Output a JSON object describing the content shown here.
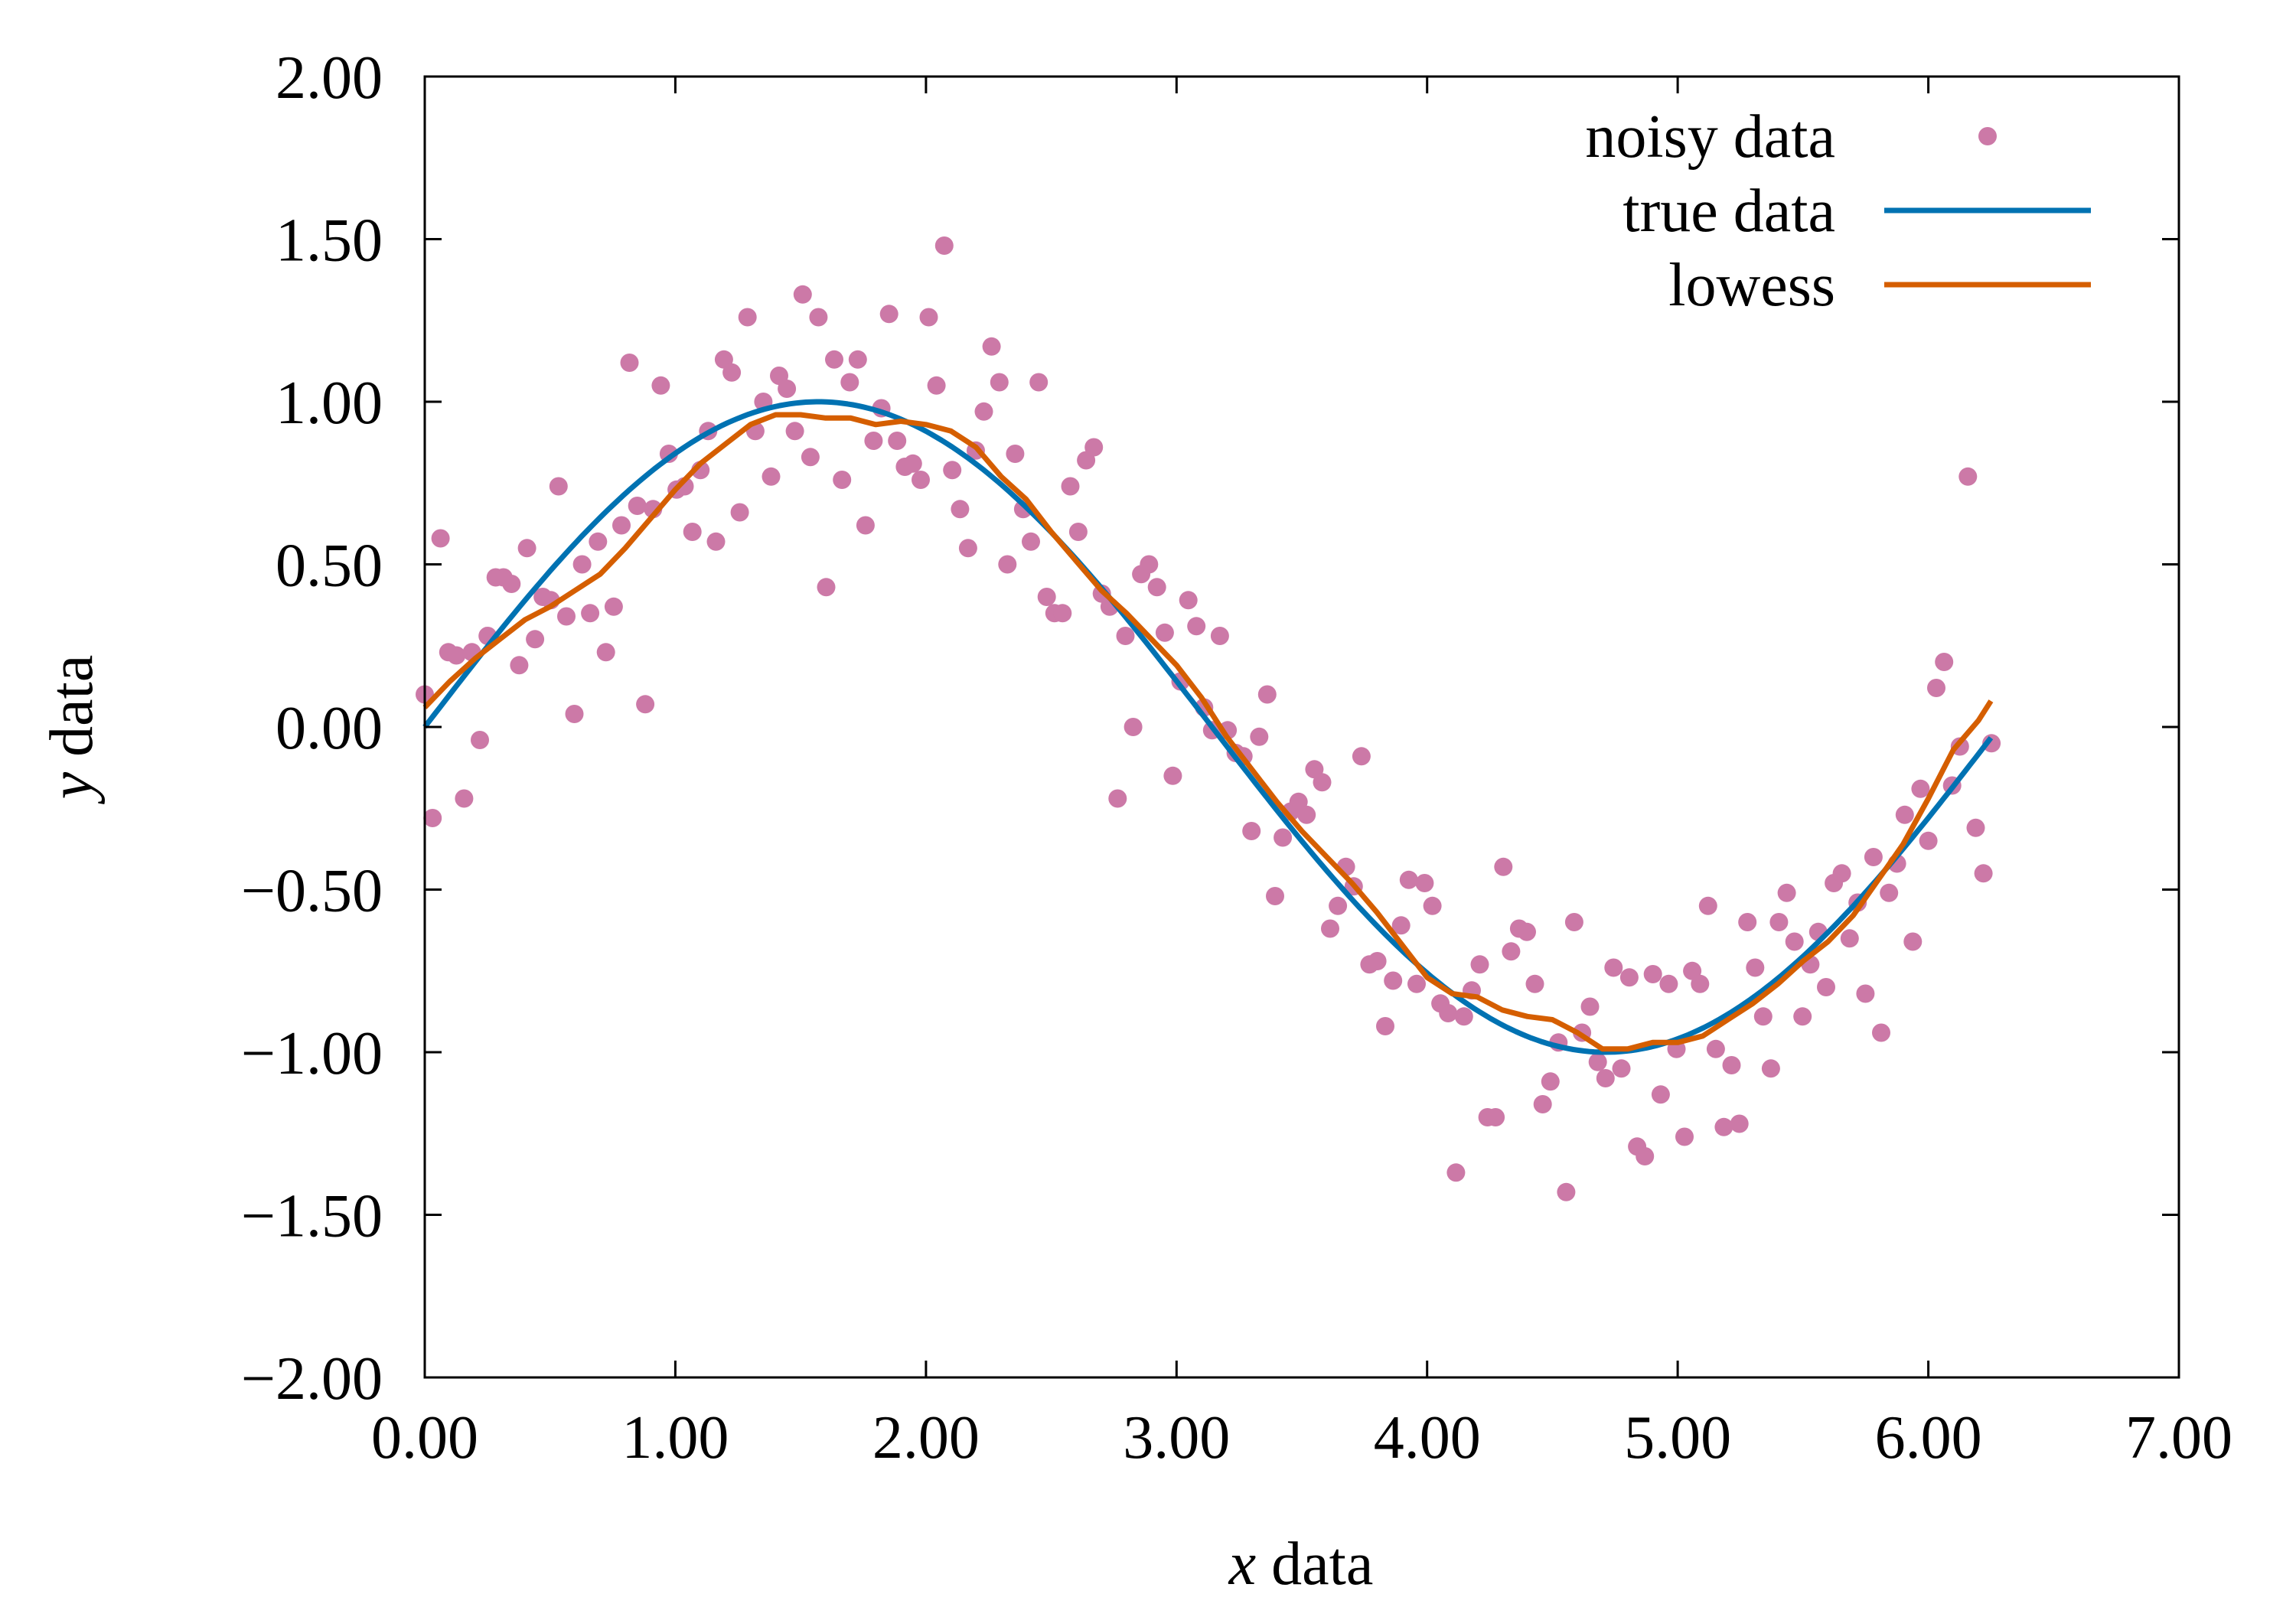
{
  "chart_data": {
    "type": "scatter",
    "xlabel_var": "x",
    "xlabel_rest": " data",
    "ylabel_var": "y",
    "ylabel_rest": " data",
    "xlim": [
      0,
      7
    ],
    "ylim": [
      -2,
      2
    ],
    "xticks": [
      0,
      1,
      2,
      3,
      4,
      5,
      6,
      7
    ],
    "xtick_labels": [
      "0.00",
      "1.00",
      "2.00",
      "3.00",
      "4.00",
      "5.00",
      "6.00",
      "7.00"
    ],
    "yticks": [
      -2,
      -1.5,
      -1,
      -0.5,
      0,
      0.5,
      1,
      1.5,
      2
    ],
    "ytick_labels": [
      "−2.00",
      "−1.50",
      "−1.00",
      "−0.50",
      "0.00",
      "0.50",
      "1.00",
      "1.50",
      "2.00"
    ],
    "grid": false,
    "legend_position": "top-right",
    "series": [
      {
        "name": "noisy data",
        "kind": "scatter",
        "color": "#cc79a7",
        "points": [
          [
            0.0,
            0.1
          ],
          [
            0.031,
            -0.28
          ],
          [
            0.063,
            0.58
          ],
          [
            0.094,
            0.23
          ],
          [
            0.126,
            0.22
          ],
          [
            0.157,
            -0.22
          ],
          [
            0.188,
            0.23
          ],
          [
            0.22,
            -0.04
          ],
          [
            0.251,
            0.28
          ],
          [
            0.283,
            0.46
          ],
          [
            0.314,
            0.46
          ],
          [
            0.346,
            0.44
          ],
          [
            0.377,
            0.19
          ],
          [
            0.408,
            0.55
          ],
          [
            0.44,
            0.27
          ],
          [
            0.471,
            0.4
          ],
          [
            0.503,
            0.39
          ],
          [
            0.534,
            0.74
          ],
          [
            0.565,
            0.34
          ],
          [
            0.597,
            0.04
          ],
          [
            0.628,
            0.5
          ],
          [
            0.66,
            0.35
          ],
          [
            0.691,
            0.57
          ],
          [
            0.723,
            0.23
          ],
          [
            0.754,
            0.37
          ],
          [
            0.785,
            0.62
          ],
          [
            0.817,
            1.12
          ],
          [
            0.848,
            0.68
          ],
          [
            0.88,
            0.07
          ],
          [
            0.911,
            0.67
          ],
          [
            0.942,
            1.05
          ],
          [
            0.974,
            0.84
          ],
          [
            1.005,
            0.73
          ],
          [
            1.037,
            0.74
          ],
          [
            1.068,
            0.6
          ],
          [
            1.1,
            0.79
          ],
          [
            1.131,
            0.91
          ],
          [
            1.162,
            0.57
          ],
          [
            1.194,
            1.13
          ],
          [
            1.225,
            1.09
          ],
          [
            1.257,
            0.66
          ],
          [
            1.288,
            1.26
          ],
          [
            1.319,
            0.91
          ],
          [
            1.351,
            1.0
          ],
          [
            1.382,
            0.77
          ],
          [
            1.414,
            1.08
          ],
          [
            1.445,
            1.04
          ],
          [
            1.477,
            0.91
          ],
          [
            1.508,
            1.33
          ],
          [
            1.539,
            0.83
          ],
          [
            1.571,
            1.26
          ],
          [
            1.602,
            0.43
          ],
          [
            1.634,
            1.13
          ],
          [
            1.665,
            0.76
          ],
          [
            1.696,
            1.06
          ],
          [
            1.728,
            1.13
          ],
          [
            1.759,
            0.62
          ],
          [
            1.791,
            0.88
          ],
          [
            1.822,
            0.98
          ],
          [
            1.853,
            1.27
          ],
          [
            1.885,
            0.88
          ],
          [
            1.916,
            0.8
          ],
          [
            1.948,
            0.81
          ],
          [
            1.979,
            0.76
          ],
          [
            2.011,
            1.26
          ],
          [
            2.042,
            1.05
          ],
          [
            2.073,
            1.48
          ],
          [
            2.105,
            0.79
          ],
          [
            2.136,
            0.67
          ],
          [
            2.168,
            0.55
          ],
          [
            2.199,
            0.85
          ],
          [
            2.231,
            0.97
          ],
          [
            2.262,
            1.17
          ],
          [
            2.293,
            1.06
          ],
          [
            2.325,
            0.5
          ],
          [
            2.356,
            0.84
          ],
          [
            2.388,
            0.67
          ],
          [
            2.419,
            0.57
          ],
          [
            2.45,
            1.06
          ],
          [
            2.482,
            0.4
          ],
          [
            2.513,
            0.35
          ],
          [
            2.545,
            0.35
          ],
          [
            2.576,
            0.74
          ],
          [
            2.608,
            0.6
          ],
          [
            2.639,
            0.82
          ],
          [
            2.67,
            0.86
          ],
          [
            2.702,
            0.41
          ],
          [
            2.733,
            0.37
          ],
          [
            2.765,
            -0.22
          ],
          [
            2.796,
            0.28
          ],
          [
            2.827,
            0.0
          ],
          [
            2.859,
            0.47
          ],
          [
            2.89,
            0.5
          ],
          [
            2.922,
            0.43
          ],
          [
            2.953,
            0.29
          ],
          [
            2.985,
            -0.15
          ],
          [
            3.016,
            0.14
          ],
          [
            3.047,
            0.39
          ],
          [
            3.079,
            0.31
          ],
          [
            3.11,
            0.06
          ],
          [
            3.142,
            -0.01
          ],
          [
            3.173,
            0.28
          ],
          [
            3.204,
            -0.01
          ],
          [
            3.236,
            -0.08
          ],
          [
            3.267,
            -0.09
          ],
          [
            3.299,
            -0.32
          ],
          [
            3.33,
            -0.03
          ],
          [
            3.362,
            0.1
          ],
          [
            3.393,
            -0.52
          ],
          [
            3.424,
            -0.34
          ],
          [
            3.456,
            -0.26
          ],
          [
            3.487,
            -0.23
          ],
          [
            3.519,
            -0.27
          ],
          [
            3.55,
            -0.13
          ],
          [
            3.581,
            -0.17
          ],
          [
            3.613,
            -0.62
          ],
          [
            3.644,
            -0.55
          ],
          [
            3.676,
            -0.43
          ],
          [
            3.707,
            -0.49
          ],
          [
            3.738,
            -0.09
          ],
          [
            3.77,
            -0.73
          ],
          [
            3.801,
            -0.72
          ],
          [
            3.833,
            -0.92
          ],
          [
            3.864,
            -0.78
          ],
          [
            3.896,
            -0.61
          ],
          [
            3.927,
            -0.47
          ],
          [
            3.958,
            -0.79
          ],
          [
            3.99,
            -0.48
          ],
          [
            4.021,
            -0.55
          ],
          [
            4.053,
            -0.85
          ],
          [
            4.084,
            -0.88
          ],
          [
            4.115,
            -1.37
          ],
          [
            4.147,
            -0.89
          ],
          [
            4.178,
            -0.81
          ],
          [
            4.21,
            -0.73
          ],
          [
            4.241,
            -1.2
          ],
          [
            4.273,
            -1.2
          ],
          [
            4.304,
            -0.43
          ],
          [
            4.335,
            -0.69
          ],
          [
            4.367,
            -0.62
          ],
          [
            4.398,
            -0.63
          ],
          [
            4.43,
            -0.79
          ],
          [
            4.461,
            -1.16
          ],
          [
            4.492,
            -1.09
          ],
          [
            4.524,
            -0.97
          ],
          [
            4.555,
            -1.43
          ],
          [
            4.587,
            -0.6
          ],
          [
            4.618,
            -0.94
          ],
          [
            4.65,
            -0.86
          ],
          [
            4.681,
            -1.03
          ],
          [
            4.712,
            -1.08
          ],
          [
            4.744,
            -0.74
          ],
          [
            4.775,
            -1.05
          ],
          [
            4.807,
            -0.77
          ],
          [
            4.838,
            -1.29
          ],
          [
            4.869,
            -1.32
          ],
          [
            4.901,
            -0.76
          ],
          [
            4.932,
            -1.13
          ],
          [
            4.964,
            -0.79
          ],
          [
            4.995,
            -0.99
          ],
          [
            5.027,
            -1.26
          ],
          [
            5.058,
            -0.75
          ],
          [
            5.089,
            -0.79
          ],
          [
            5.121,
            -0.55
          ],
          [
            5.152,
            -0.99
          ],
          [
            5.184,
            -1.23
          ],
          [
            5.215,
            -1.04
          ],
          [
            5.246,
            -1.22
          ],
          [
            5.278,
            -0.6
          ],
          [
            5.309,
            -0.74
          ],
          [
            5.341,
            -0.89
          ],
          [
            5.372,
            -1.05
          ],
          [
            5.404,
            -0.6
          ],
          [
            5.435,
            -0.51
          ],
          [
            5.466,
            -0.66
          ],
          [
            5.498,
            -0.89
          ],
          [
            5.529,
            -0.73
          ],
          [
            5.561,
            -0.63
          ],
          [
            5.592,
            -0.8
          ],
          [
            5.623,
            -0.48
          ],
          [
            5.655,
            -0.45
          ],
          [
            5.686,
            -0.65
          ],
          [
            5.718,
            -0.54
          ],
          [
            5.749,
            -0.82
          ],
          [
            5.781,
            -0.4
          ],
          [
            5.812,
            -0.94
          ],
          [
            5.843,
            -0.51
          ],
          [
            5.875,
            -0.42
          ],
          [
            5.906,
            -0.27
          ],
          [
            5.938,
            -0.66
          ],
          [
            5.969,
            -0.19
          ],
          [
            6.0,
            -0.35
          ],
          [
            6.032,
            0.12
          ],
          [
            6.063,
            0.2
          ],
          [
            6.095,
            -0.18
          ],
          [
            6.126,
            -0.06
          ],
          [
            6.158,
            0.77
          ],
          [
            6.189,
            -0.31
          ],
          [
            6.22,
            -0.45
          ],
          [
            6.252,
            -0.05
          ]
        ]
      },
      {
        "name": "true data",
        "kind": "line",
        "color": "#0072b2",
        "function": "sin(x)",
        "x_range": [
          0,
          6.25
        ]
      },
      {
        "name": "lowess",
        "kind": "line",
        "color": "#d55e00",
        "points": [
          [
            0.0,
            0.06
          ],
          [
            0.1,
            0.14
          ],
          [
            0.2,
            0.21
          ],
          [
            0.3,
            0.27
          ],
          [
            0.4,
            0.33
          ],
          [
            0.5,
            0.37
          ],
          [
            0.6,
            0.42
          ],
          [
            0.7,
            0.47
          ],
          [
            0.8,
            0.55
          ],
          [
            0.9,
            0.64
          ],
          [
            1.0,
            0.73
          ],
          [
            1.1,
            0.81
          ],
          [
            1.2,
            0.87
          ],
          [
            1.3,
            0.93
          ],
          [
            1.4,
            0.96
          ],
          [
            1.5,
            0.96
          ],
          [
            1.6,
            0.95
          ],
          [
            1.7,
            0.95
          ],
          [
            1.8,
            0.93
          ],
          [
            1.9,
            0.94
          ],
          [
            2.0,
            0.93
          ],
          [
            2.1,
            0.91
          ],
          [
            2.2,
            0.86
          ],
          [
            2.3,
            0.77
          ],
          [
            2.4,
            0.7
          ],
          [
            2.5,
            0.6
          ],
          [
            2.6,
            0.51
          ],
          [
            2.7,
            0.42
          ],
          [
            2.8,
            0.35
          ],
          [
            2.9,
            0.27
          ],
          [
            3.0,
            0.19
          ],
          [
            3.1,
            0.09
          ],
          [
            3.2,
            -0.03
          ],
          [
            3.3,
            -0.13
          ],
          [
            3.4,
            -0.23
          ],
          [
            3.5,
            -0.32
          ],
          [
            3.6,
            -0.4
          ],
          [
            3.7,
            -0.48
          ],
          [
            3.8,
            -0.57
          ],
          [
            3.9,
            -0.67
          ],
          [
            4.0,
            -0.77
          ],
          [
            4.1,
            -0.82
          ],
          [
            4.2,
            -0.83
          ],
          [
            4.3,
            -0.87
          ],
          [
            4.4,
            -0.89
          ],
          [
            4.5,
            -0.9
          ],
          [
            4.6,
            -0.94
          ],
          [
            4.7,
            -0.99
          ],
          [
            4.8,
            -0.99
          ],
          [
            4.9,
            -0.97
          ],
          [
            5.0,
            -0.97
          ],
          [
            5.1,
            -0.95
          ],
          [
            5.2,
            -0.9
          ],
          [
            5.3,
            -0.85
          ],
          [
            5.4,
            -0.79
          ],
          [
            5.5,
            -0.72
          ],
          [
            5.6,
            -0.66
          ],
          [
            5.7,
            -0.58
          ],
          [
            5.8,
            -0.47
          ],
          [
            5.9,
            -0.36
          ],
          [
            6.0,
            -0.22
          ],
          [
            6.1,
            -0.07
          ],
          [
            6.2,
            0.02
          ],
          [
            6.25,
            0.08
          ]
        ]
      }
    ]
  }
}
